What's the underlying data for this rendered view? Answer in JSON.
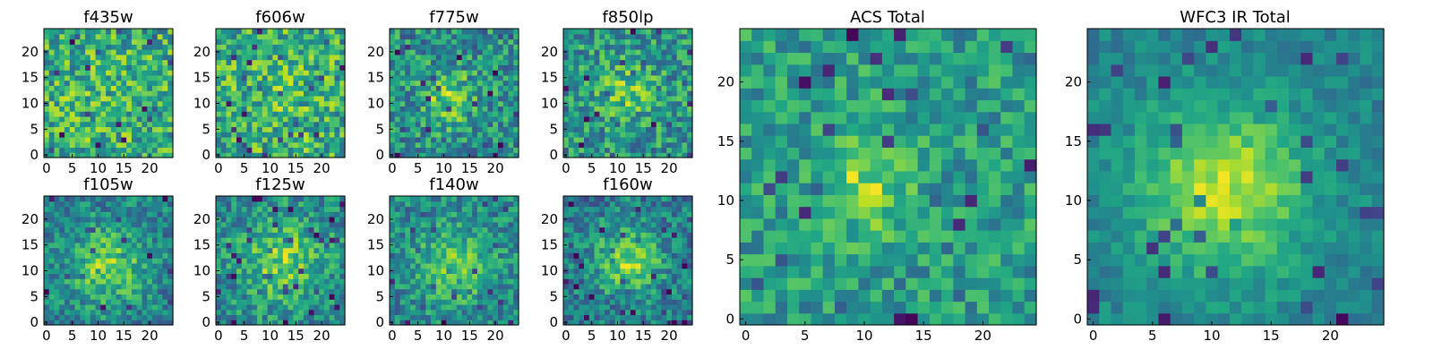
{
  "chart_data": [
    {
      "type": "heatmap",
      "title": "f435w",
      "colormap": "viridis",
      "grid_size": [
        25,
        25
      ],
      "xlim": [
        -0.5,
        24.5
      ],
      "ylim": [
        -0.5,
        24.5
      ],
      "x_ticks": [
        "0",
        "5",
        "10",
        "15",
        "20"
      ],
      "y_ticks": [
        "0",
        "5",
        "10",
        "15",
        "20"
      ],
      "pattern": "noise",
      "peak_center": [
        12,
        11
      ],
      "peak_width": 9,
      "peak_strength": 0.06,
      "noise_level": 0.55,
      "base_level": 0.6,
      "seed": 11
    },
    {
      "type": "heatmap",
      "title": "f606w",
      "colormap": "viridis",
      "grid_size": [
        25,
        25
      ],
      "xlim": [
        -0.5,
        24.5
      ],
      "ylim": [
        -0.5,
        24.5
      ],
      "x_ticks": [
        "0",
        "5",
        "10",
        "15",
        "20"
      ],
      "y_ticks": [
        "0",
        "5",
        "10",
        "15",
        "20"
      ],
      "pattern": "noise",
      "peak_center": [
        12,
        12
      ],
      "peak_width": 9,
      "peak_strength": 0.08,
      "noise_level": 0.55,
      "base_level": 0.6,
      "seed": 23
    },
    {
      "type": "heatmap",
      "title": "f775w",
      "colormap": "viridis",
      "grid_size": [
        25,
        25
      ],
      "xlim": [
        -0.5,
        24.5
      ],
      "ylim": [
        -0.5,
        24.5
      ],
      "x_ticks": [
        "0",
        "5",
        "10",
        "15",
        "20"
      ],
      "y_ticks": [
        "0",
        "5",
        "10",
        "15",
        "20"
      ],
      "pattern": "noise-with-peak",
      "peak_center": [
        11,
        11
      ],
      "peak_width": 3.5,
      "peak_strength": 0.3,
      "noise_level": 0.5,
      "base_level": 0.5,
      "seed": 37
    },
    {
      "type": "heatmap",
      "title": "f850lp",
      "colormap": "viridis",
      "grid_size": [
        25,
        25
      ],
      "xlim": [
        -0.5,
        24.5
      ],
      "ylim": [
        -0.5,
        24.5
      ],
      "x_ticks": [
        "0",
        "5",
        "10",
        "15",
        "20"
      ],
      "y_ticks": [
        "0",
        "5",
        "10",
        "15",
        "20"
      ],
      "pattern": "noise-with-peak",
      "peak_center": [
        12,
        12
      ],
      "peak_width": 4,
      "peak_strength": 0.22,
      "noise_level": 0.5,
      "base_level": 0.52,
      "seed": 41
    },
    {
      "type": "heatmap",
      "title": "f105w",
      "colormap": "viridis",
      "grid_size": [
        25,
        25
      ],
      "xlim": [
        -0.5,
        24.5
      ],
      "ylim": [
        -0.5,
        24.5
      ],
      "x_ticks": [
        "0",
        "5",
        "10",
        "15",
        "20"
      ],
      "y_ticks": [
        "0",
        "5",
        "10",
        "15",
        "20"
      ],
      "pattern": "noise-with-peak",
      "peak_center": [
        12,
        11
      ],
      "peak_width": 5,
      "peak_strength": 0.35,
      "noise_level": 0.4,
      "base_level": 0.45,
      "seed": 53
    },
    {
      "type": "heatmap",
      "title": "f125w",
      "colormap": "viridis",
      "grid_size": [
        25,
        25
      ],
      "xlim": [
        -0.5,
        24.5
      ],
      "ylim": [
        -0.5,
        24.5
      ],
      "x_ticks": [
        "0",
        "5",
        "10",
        "15",
        "20"
      ],
      "y_ticks": [
        "0",
        "5",
        "10",
        "15",
        "20"
      ],
      "pattern": "noise-with-peak",
      "peak_center": [
        12,
        12
      ],
      "peak_width": 5.5,
      "peak_strength": 0.3,
      "noise_level": 0.42,
      "base_level": 0.48,
      "seed": 67
    },
    {
      "type": "heatmap",
      "title": "f140w",
      "colormap": "viridis",
      "grid_size": [
        25,
        25
      ],
      "xlim": [
        -0.5,
        24.5
      ],
      "ylim": [
        -0.5,
        24.5
      ],
      "x_ticks": [
        "0",
        "5",
        "10",
        "15",
        "20"
      ],
      "y_ticks": [
        "0",
        "5",
        "10",
        "15",
        "20"
      ],
      "pattern": "noise-with-peak",
      "peak_center": [
        12,
        11
      ],
      "peak_width": 5,
      "peak_strength": 0.3,
      "noise_level": 0.4,
      "base_level": 0.47,
      "seed": 79
    },
    {
      "type": "heatmap",
      "title": "f160w",
      "colormap": "viridis",
      "grid_size": [
        25,
        25
      ],
      "xlim": [
        -0.5,
        24.5
      ],
      "ylim": [
        -0.5,
        24.5
      ],
      "x_ticks": [
        "0",
        "5",
        "10",
        "15",
        "20"
      ],
      "y_ticks": [
        "0",
        "5",
        "10",
        "15",
        "20"
      ],
      "pattern": "noise-with-peak",
      "peak_center": [
        12,
        12
      ],
      "peak_width": 4.5,
      "peak_strength": 0.38,
      "noise_level": 0.42,
      "base_level": 0.42,
      "seed": 83
    },
    {
      "type": "heatmap",
      "title": "ACS Total",
      "colormap": "viridis",
      "grid_size": [
        25,
        25
      ],
      "xlim": [
        -0.5,
        24.5
      ],
      "ylim": [
        -0.5,
        24.5
      ],
      "x_ticks": [
        "0",
        "5",
        "10",
        "15",
        "20"
      ],
      "y_ticks": [
        "0",
        "5",
        "10",
        "15",
        "20"
      ],
      "pattern": "noise-with-peak",
      "peak_center": [
        10,
        11
      ],
      "peak_width": 2.5,
      "peak_strength": 0.3,
      "noise_level": 0.38,
      "base_level": 0.55,
      "seed": 97
    },
    {
      "type": "heatmap",
      "title": "WFC3 IR Total",
      "colormap": "viridis",
      "grid_size": [
        25,
        25
      ],
      "xlim": [
        -0.5,
        24.5
      ],
      "ylim": [
        -0.5,
        24.5
      ],
      "x_ticks": [
        "0",
        "5",
        "10",
        "15",
        "20"
      ],
      "y_ticks": [
        "0",
        "5",
        "10",
        "15",
        "20"
      ],
      "pattern": "smooth-peak",
      "peak_center": [
        11,
        11
      ],
      "peak_width": 5,
      "peak_strength": 0.45,
      "noise_level": 0.22,
      "base_level": 0.45,
      "seed": 101
    }
  ]
}
